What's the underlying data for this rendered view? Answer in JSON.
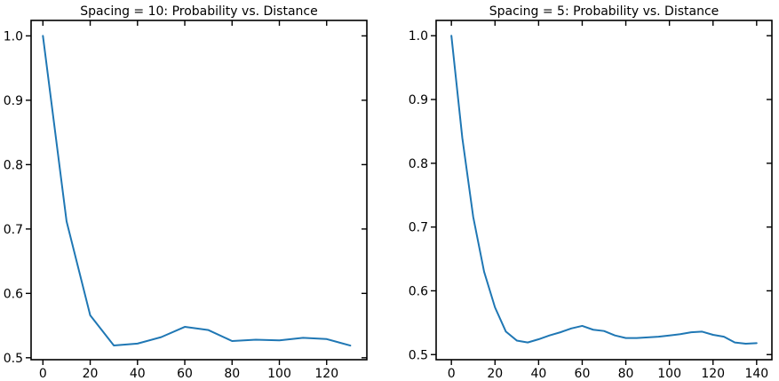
{
  "chart_data": [
    {
      "type": "line",
      "title": "Spacing = 10: Probability vs. Distance",
      "xlabel": "",
      "ylabel": "",
      "xlim": [
        -5,
        137
      ],
      "ylim": [
        0.497,
        1.024
      ],
      "xticks": [
        0,
        20,
        40,
        60,
        80,
        100,
        120
      ],
      "yticks": [
        0.5,
        0.6,
        0.7,
        0.8,
        0.9,
        1.0
      ],
      "xtick_labels": [
        "0",
        "20",
        "40",
        "60",
        "80",
        "100",
        "120"
      ],
      "ytick_labels": [
        "0.5",
        "0.6",
        "0.7",
        "0.8",
        "0.9",
        "1.0"
      ],
      "grid": false,
      "line_color": "#1f77b4",
      "series": [
        {
          "x": [
            0,
            10,
            20,
            30,
            40,
            50,
            60,
            70,
            80,
            90,
            100,
            110,
            120,
            130
          ],
          "y": [
            1.0,
            0.712,
            0.566,
            0.519,
            0.522,
            0.532,
            0.548,
            0.543,
            0.526,
            0.528,
            0.527,
            0.531,
            0.529,
            0.519
          ]
        }
      ]
    },
    {
      "type": "line",
      "title": "Spacing = 5: Probability vs. Distance",
      "xlabel": "",
      "ylabel": "",
      "xlim": [
        -7,
        147
      ],
      "ylim": [
        0.492,
        1.024
      ],
      "xticks": [
        0,
        20,
        40,
        60,
        80,
        100,
        120,
        140
      ],
      "yticks": [
        0.5,
        0.6,
        0.7,
        0.8,
        0.9,
        1.0
      ],
      "xtick_labels": [
        "0",
        "20",
        "40",
        "60",
        "80",
        "100",
        "120",
        "140"
      ],
      "ytick_labels": [
        "0.5",
        "0.6",
        "0.7",
        "0.8",
        "0.9",
        "1.0"
      ],
      "grid": false,
      "line_color": "#1f77b4",
      "series": [
        {
          "x": [
            0,
            5,
            10,
            15,
            20,
            25,
            30,
            35,
            40,
            45,
            50,
            55,
            60,
            65,
            70,
            75,
            80,
            85,
            90,
            95,
            100,
            105,
            110,
            115,
            120,
            125,
            130,
            135,
            140
          ],
          "y": [
            1.0,
            0.84,
            0.716,
            0.63,
            0.574,
            0.536,
            0.522,
            0.519,
            0.524,
            0.53,
            0.535,
            0.541,
            0.545,
            0.539,
            0.537,
            0.53,
            0.526,
            0.526,
            0.527,
            0.528,
            0.53,
            0.532,
            0.535,
            0.536,
            0.531,
            0.528,
            0.519,
            0.517,
            0.518
          ]
        }
      ]
    }
  ]
}
